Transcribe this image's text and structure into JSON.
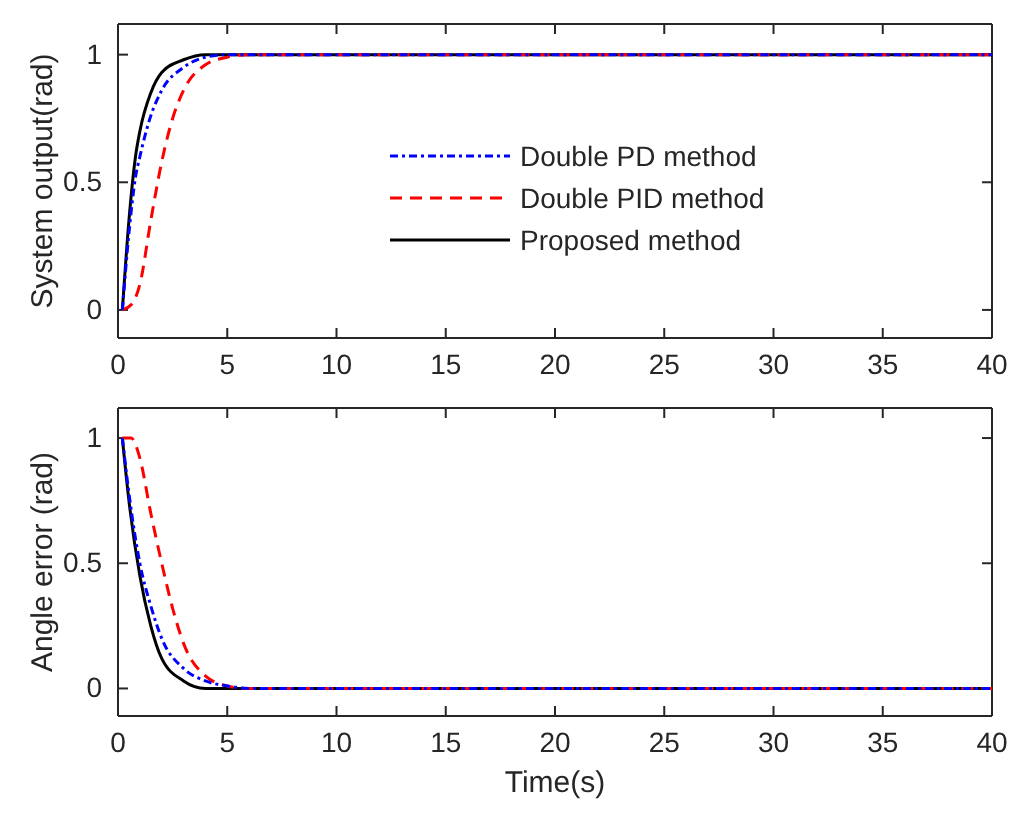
{
  "chart_data": [
    {
      "type": "line",
      "ylabel": "System output(rad)",
      "xlim": [
        0,
        40
      ],
      "xticks": [
        0,
        5,
        10,
        15,
        20,
        25,
        30,
        35,
        40
      ],
      "ylim": [
        -0.11,
        1.12
      ],
      "yticks": [
        0,
        0.5,
        1
      ],
      "legend": "right",
      "series": [
        {
          "name": "Double PD method",
          "color": "#0000ff",
          "line_style": "dashdot",
          "x": [
            0.2,
            0.5,
            0.8,
            1,
            1.5,
            2,
            3,
            4,
            5,
            40
          ],
          "values": [
            0,
            0.3,
            0.52,
            0.6,
            0.76,
            0.86,
            0.95,
            0.99,
            1,
            1
          ]
        },
        {
          "name": "Double PID method",
          "color": "#ff0000",
          "line_style": "dashed",
          "x": [
            0.2,
            0.6,
            1,
            1.5,
            2,
            2.5,
            3,
            4,
            5,
            6,
            40
          ],
          "values": [
            0,
            0.02,
            0.1,
            0.35,
            0.58,
            0.75,
            0.86,
            0.96,
            0.99,
            1,
            1
          ]
        },
        {
          "name": "Proposed method",
          "color": "#000000",
          "line_style": "solid",
          "x": [
            0.2,
            0.5,
            0.8,
            1,
            1.5,
            2,
            3,
            4,
            40
          ],
          "values": [
            0,
            0.35,
            0.6,
            0.7,
            0.85,
            0.93,
            0.98,
            1,
            1
          ]
        }
      ]
    },
    {
      "type": "line",
      "ylabel": "Angle error (rad)",
      "xlabel": "Time(s)",
      "xlim": [
        0,
        40
      ],
      "xticks": [
        0,
        5,
        10,
        15,
        20,
        25,
        30,
        35,
        40
      ],
      "ylim": [
        -0.11,
        1.12
      ],
      "yticks": [
        0,
        0.5,
        1
      ],
      "series": [
        {
          "color": "#0000ff",
          "line_style": "dashdot",
          "x": [
            0.2,
            0.5,
            1,
            1.5,
            2,
            3,
            4,
            5,
            6,
            40
          ],
          "values": [
            1,
            0.78,
            0.5,
            0.33,
            0.2,
            0.08,
            0.03,
            0.01,
            0,
            0
          ]
        },
        {
          "color": "#ff0000",
          "line_style": "dashed",
          "x": [
            0.2,
            0.6,
            1,
            1.5,
            2,
            2.5,
            3,
            4,
            5,
            6,
            40
          ],
          "values": [
            1,
            1,
            0.92,
            0.7,
            0.5,
            0.32,
            0.18,
            0.05,
            0.01,
            0,
            0
          ]
        },
        {
          "color": "#000000",
          "line_style": "solid",
          "x": [
            0.2,
            0.5,
            1,
            1.5,
            2,
            3,
            4,
            40
          ],
          "values": [
            1,
            0.75,
            0.45,
            0.25,
            0.12,
            0.03,
            0,
            0
          ]
        }
      ]
    }
  ]
}
